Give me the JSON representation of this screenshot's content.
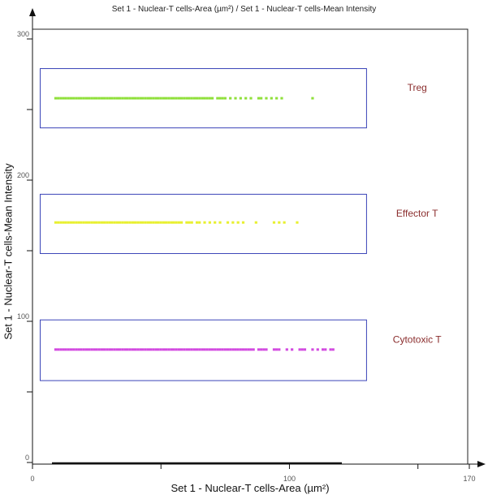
{
  "chart_data": {
    "type": "scatter",
    "title": "Set 1 - Nuclear-T cells-Area (µm²) / Set 1 - Nuclear-T cells-Mean Intensity",
    "xlabel": "Set 1 - Nuclear-T cells-Area (µm²)",
    "ylabel": "Set 1 - Nuclear-T cells-Mean Intensity",
    "xlim": [
      0,
      170
    ],
    "ylim": [
      0,
      300
    ],
    "x_ticks": [
      0,
      100,
      170
    ],
    "y_ticks": [
      0,
      100,
      200,
      300
    ],
    "grid": false,
    "series": [
      {
        "name": "Treg",
        "color": "#8fe03a",
        "y": 258,
        "x": [
          9,
          10,
          11,
          12,
          13,
          14,
          15,
          16,
          17,
          18,
          19,
          20,
          21,
          22,
          23,
          24,
          25,
          26,
          27,
          28,
          29,
          30,
          31,
          32,
          33,
          34,
          35,
          36,
          37,
          38,
          39,
          40,
          41,
          42,
          43,
          44,
          45,
          46,
          47,
          48,
          49,
          50,
          51,
          52,
          53,
          54,
          55,
          56,
          57,
          58,
          59,
          60,
          61,
          62,
          63,
          64,
          65,
          66,
          67,
          68,
          69,
          70,
          72,
          73,
          74,
          75,
          77,
          79,
          81,
          83,
          85,
          88,
          89,
          91,
          93,
          95,
          97,
          109
        ]
      },
      {
        "name": "Effector T",
        "color": "#e8f030",
        "y": 170,
        "x": [
          9,
          10,
          11,
          12,
          13,
          14,
          15,
          16,
          17,
          18,
          19,
          20,
          21,
          22,
          23,
          24,
          25,
          26,
          27,
          28,
          29,
          30,
          31,
          32,
          33,
          34,
          35,
          36,
          37,
          38,
          39,
          40,
          41,
          42,
          43,
          44,
          45,
          46,
          47,
          48,
          49,
          50,
          51,
          52,
          53,
          54,
          55,
          56,
          57,
          58,
          60,
          61,
          62,
          64,
          65,
          67,
          69,
          71,
          73,
          76,
          78,
          80,
          82,
          87,
          94,
          96,
          98,
          103
        ]
      },
      {
        "name": "Cytotoxic T",
        "color": "#d24ae0",
        "y": 80,
        "x": [
          9,
          10,
          11,
          12,
          13,
          14,
          15,
          16,
          17,
          18,
          19,
          20,
          21,
          22,
          23,
          24,
          25,
          26,
          27,
          28,
          29,
          30,
          31,
          32,
          33,
          34,
          35,
          36,
          37,
          38,
          39,
          40,
          41,
          42,
          43,
          44,
          45,
          46,
          47,
          48,
          49,
          50,
          51,
          52,
          53,
          54,
          55,
          56,
          57,
          58,
          59,
          60,
          61,
          62,
          63,
          64,
          65,
          66,
          67,
          68,
          69,
          70,
          71,
          72,
          73,
          74,
          75,
          76,
          77,
          78,
          79,
          80,
          81,
          82,
          83,
          84,
          85,
          86,
          88,
          89,
          90,
          91,
          94,
          95,
          96,
          99,
          101,
          104,
          105,
          106,
          109,
          111,
          113,
          114,
          116,
          117
        ]
      }
    ],
    "gates": [
      {
        "name": "Treg",
        "x_range": [
          3,
          130
        ],
        "y_range": [
          237,
          279
        ],
        "label": "Treg"
      },
      {
        "name": "Effector T",
        "x_range": [
          3,
          130
        ],
        "y_range": [
          148,
          190
        ],
        "label": "Effector T"
      },
      {
        "name": "Cytotoxic T",
        "x_range": [
          3,
          130
        ],
        "y_range": [
          58,
          101
        ],
        "label": "Cytotoxic T"
      }
    ]
  }
}
